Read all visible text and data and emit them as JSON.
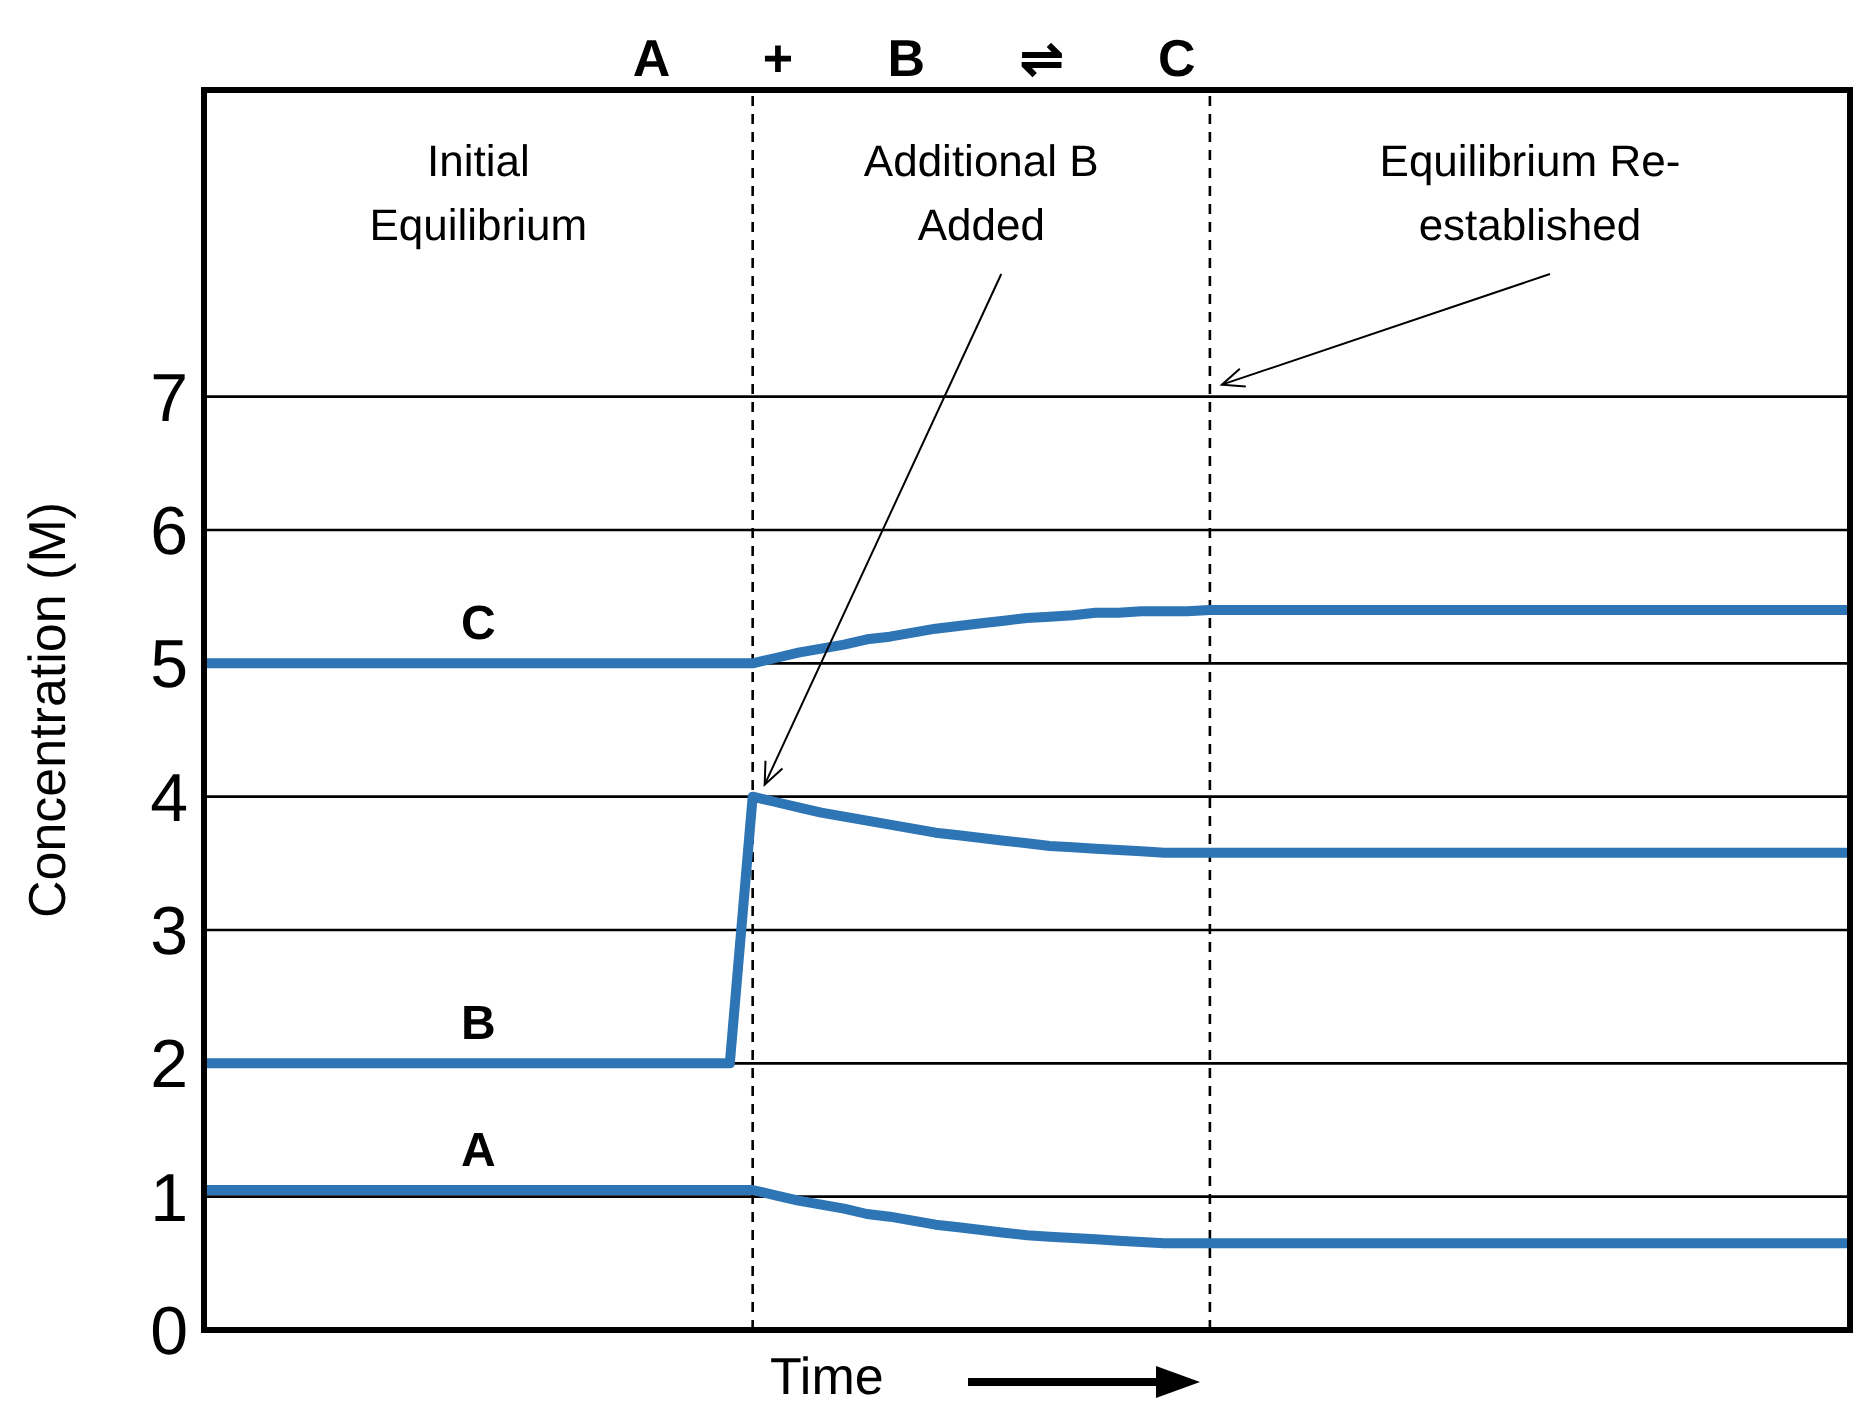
{
  "chart_data": {
    "type": "line",
    "title": "A + B ⇌ C",
    "xlabel": "Time",
    "ylabel": "Concentration (M)",
    "categories": [
      null,
      null,
      null,
      null,
      null,
      null,
      null,
      null,
      null,
      null,
      null,
      null,
      null,
      null,
      null,
      null,
      null,
      null,
      null,
      null,
      null,
      null,
      null,
      null,
      null,
      null,
      null,
      null,
      null,
      null,
      null,
      null,
      null,
      null,
      null,
      null,
      null,
      null,
      null,
      null,
      null,
      null,
      null,
      null,
      null,
      null,
      null,
      null,
      null,
      null,
      null,
      null,
      null,
      null,
      null,
      null,
      null,
      null,
      null,
      null,
      null,
      null,
      null,
      null,
      null,
      null,
      null,
      null,
      null,
      null,
      null,
      null,
      null
    ],
    "ylim": [
      0,
      9.3
    ],
    "yticks": [
      0,
      1,
      2,
      3,
      4,
      5,
      6,
      7
    ],
    "tick_labels": "y",
    "grid": "y",
    "marker": "none",
    "line_style": "solid",
    "series": [
      {
        "name": "C",
        "color": "#2e75b6",
        "values": [
          5,
          5,
          5,
          5,
          5,
          5,
          5,
          5,
          5,
          5,
          5,
          5,
          5,
          5,
          5,
          5,
          5,
          5,
          5,
          5,
          5,
          5,
          5,
          5,
          5,
          5.04,
          5.08,
          5.11,
          5.14,
          5.18,
          5.2,
          5.23,
          5.26,
          5.28,
          5.3,
          5.32,
          5.34,
          5.35,
          5.36,
          5.38,
          5.38,
          5.39,
          5.39,
          5.39,
          5.4,
          5.4,
          5.4,
          5.4,
          5.4,
          5.4,
          5.4,
          5.4,
          5.4,
          5.4,
          5.4,
          5.4,
          5.4,
          5.4,
          5.4,
          5.4,
          5.4,
          5.4,
          5.4,
          5.4,
          5.4,
          5.4,
          5.4,
          5.4,
          5.4,
          5.4,
          5.4,
          5.4,
          5.4
        ]
      },
      {
        "name": "B",
        "color": "#2e75b6",
        "values": [
          2,
          2,
          2,
          2,
          2,
          2,
          2,
          2,
          2,
          2,
          2,
          2,
          2,
          2,
          2,
          2,
          2,
          2,
          2,
          2,
          2,
          2,
          2,
          2,
          4,
          3.96,
          3.92,
          3.88,
          3.85,
          3.82,
          3.79,
          3.76,
          3.73,
          3.71,
          3.69,
          3.67,
          3.65,
          3.63,
          3.62,
          3.61,
          3.6,
          3.59,
          3.58,
          3.58,
          3.58,
          3.58,
          3.58,
          3.58,
          3.58,
          3.58,
          3.58,
          3.58,
          3.58,
          3.58,
          3.58,
          3.58,
          3.58,
          3.58,
          3.58,
          3.58,
          3.58,
          3.58,
          3.58,
          3.58,
          3.58,
          3.58,
          3.58,
          3.58,
          3.58,
          3.58,
          3.58,
          3.58,
          3.58
        ]
      },
      {
        "name": "A",
        "color": "#2e75b6",
        "values": [
          1.05,
          1.05,
          1.05,
          1.05,
          1.05,
          1.05,
          1.05,
          1.05,
          1.05,
          1.05,
          1.05,
          1.05,
          1.05,
          1.05,
          1.05,
          1.05,
          1.05,
          1.05,
          1.05,
          1.05,
          1.05,
          1.05,
          1.05,
          1.05,
          1.05,
          1.01,
          0.97,
          0.94,
          0.91,
          0.87,
          0.85,
          0.82,
          0.79,
          0.77,
          0.75,
          0.73,
          0.71,
          0.7,
          0.69,
          0.68,
          0.67,
          0.66,
          0.65,
          0.65,
          0.65,
          0.65,
          0.65,
          0.65,
          0.65,
          0.65,
          0.65,
          0.65,
          0.65,
          0.65,
          0.65,
          0.65,
          0.65,
          0.65,
          0.65,
          0.65,
          0.65,
          0.65,
          0.65,
          0.65,
          0.65,
          0.65,
          0.65,
          0.65,
          0.65,
          0.65,
          0.65,
          0.65,
          0.65
        ]
      }
    ],
    "annotations": [
      "Initial Equilibrium",
      "Additional B Added",
      "Equilibrium Re-established"
    ]
  }
}
